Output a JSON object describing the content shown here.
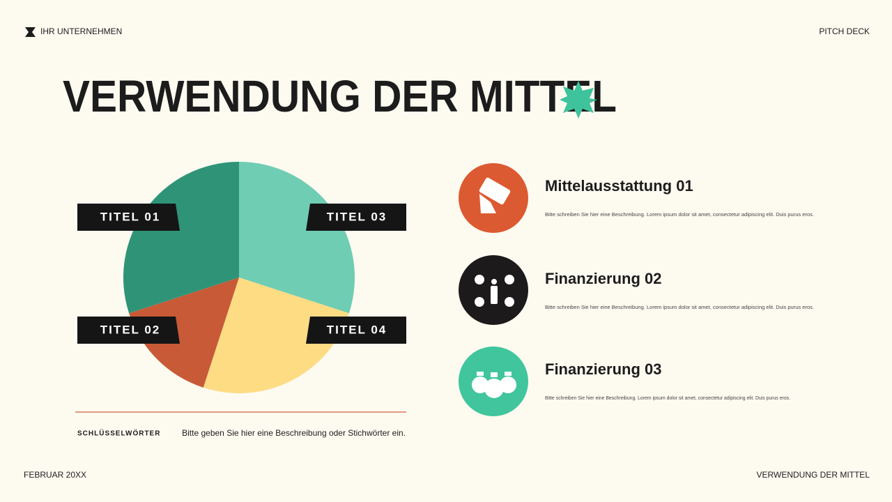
{
  "header": {
    "company": "IHR UNTERNEHMEN",
    "deck": "PITCH DECK"
  },
  "title": "VERWENDUNG DER MITTEL",
  "chart_data": {
    "type": "pie",
    "categories": [
      "TITEL 03",
      "TITEL 04",
      "TITEL 02",
      "TITEL 01"
    ],
    "values": [
      30,
      25,
      15,
      30
    ],
    "colors": [
      "#6fcdb4",
      "#fddc84",
      "#c85a37",
      "#2f9477"
    ]
  },
  "keywords": {
    "label": "SCHLÜSSELWÖRTER",
    "text": "Bitte geben Sie hier eine Beschreibung oder Stichwörter ein."
  },
  "items": [
    {
      "title": "Mittelausstattung 01",
      "description": "Bitte schreiben Sie hier eine Beschreibung. Lorem ipsum dolor sit amet, consectetur adipiscing elit. Duis purus eros."
    },
    {
      "title": "Finanzierung 02",
      "description": "Bitte schreiben Sie hier eine Beschreibung. Lorem ipsum dolor sit amet, consectetur adipiscing elit. Duis purus eros."
    },
    {
      "title": "Finanzierung 03",
      "description": "Bitte schreiben Sie hier eine Beschreibung. Lorem ipsum dolor sit amet, consectetur adipiscing elit. Duis purus eros."
    }
  ],
  "footer": {
    "date": "FEBRUAR 20XX",
    "section": "VERWENDUNG DER MITTEL"
  }
}
